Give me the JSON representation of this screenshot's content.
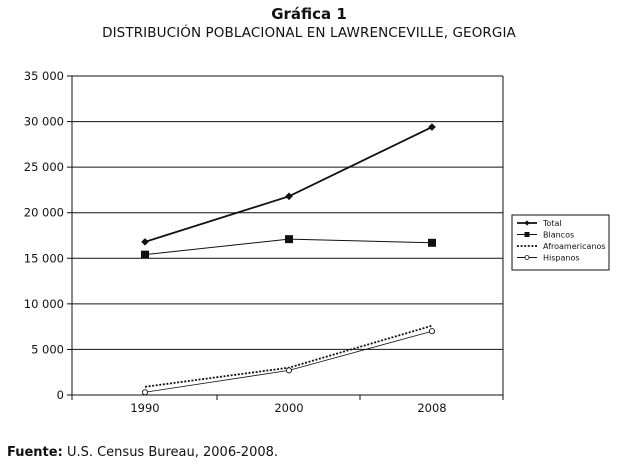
{
  "header": {
    "title": "Gráfica 1",
    "subtitle": "DISTRIBUCIÓN POBLACIONAL EN LAWRENCEVILLE, GEORGIA"
  },
  "source": {
    "label": "Fuente:",
    "text": "U.S. Census Bureau, 2006-2008."
  },
  "chart_data": {
    "type": "line",
    "title": "",
    "xlabel": "",
    "ylabel": "",
    "categories": [
      "1990",
      "2000",
      "2008"
    ],
    "ylim": [
      0,
      35000
    ],
    "yticks": [
      0,
      5000,
      10000,
      15000,
      20000,
      25000,
      30000,
      35000
    ],
    "ytick_labels": [
      "0",
      "5 000",
      "10 000",
      "15 000",
      "20 000",
      "25 000",
      "30 000",
      "35 000"
    ],
    "grid": "horizontal",
    "legend_position": "right",
    "series": [
      {
        "name": "Total",
        "values": [
          16800,
          21800,
          29400
        ],
        "marker": "diamond",
        "line": "solid-bold",
        "color": "#111111"
      },
      {
        "name": "Blancos",
        "values": [
          15400,
          17100,
          16700
        ],
        "marker": "square",
        "line": "solid",
        "color": "#111111"
      },
      {
        "name": "Afroamericanos",
        "values": [
          900,
          3000,
          7600
        ],
        "marker": "none",
        "line": "dotted",
        "color": "#111111"
      },
      {
        "name": "Hispanos",
        "values": [
          300,
          2700,
          7000
        ],
        "marker": "open-circle",
        "line": "solid-thin",
        "color": "#111111"
      }
    ]
  }
}
